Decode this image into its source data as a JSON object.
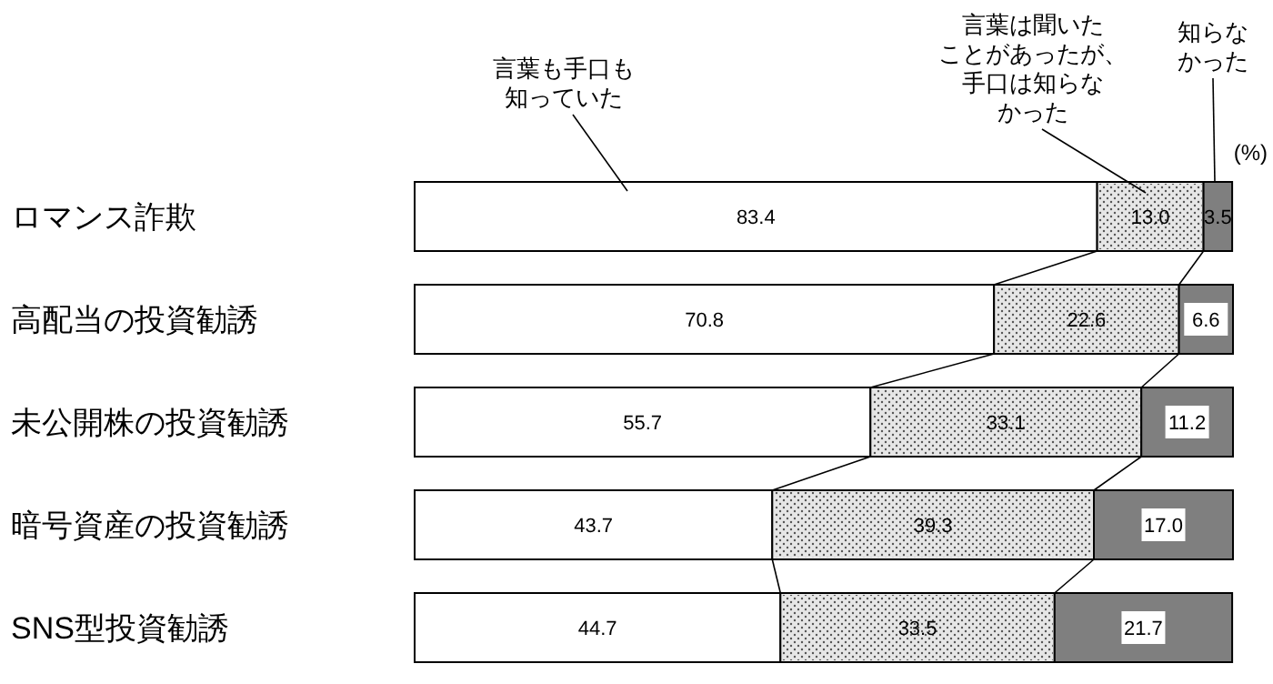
{
  "chart_data": {
    "type": "bar",
    "orientation": "horizontal",
    "stacked": true,
    "categories": [
      "ロマンス詐欺",
      "高配当の投資勧誘",
      "未公開株の投資勧誘",
      "暗号資産の投資勧誘",
      "SNS型投資勧誘"
    ],
    "series": [
      {
        "name": "言葉も手口も知っていた",
        "color": "#ffffff",
        "values": [
          83.4,
          70.8,
          55.7,
          43.7,
          44.7
        ],
        "value_labels": [
          "83.4",
          "70.8",
          "55.7",
          "43.7",
          "44.7"
        ]
      },
      {
        "name": "言葉は聞いたことがあったが、手口は知らなかった",
        "color": "#e6e6e6",
        "values": [
          13.0,
          22.6,
          33.1,
          39.3,
          33.5
        ],
        "value_labels": [
          "13.0",
          "22.6",
          "33.1",
          "39.3",
          "33.5"
        ]
      },
      {
        "name": "知らなかった",
        "color": "#7f7f7f",
        "values": [
          3.5,
          6.6,
          11.2,
          17.0,
          21.7
        ],
        "value_labels": [
          "3.5",
          "6.6",
          "11.2",
          "17.0",
          "21.7"
        ]
      }
    ],
    "annotations": [
      "(%)"
    ]
  }
}
